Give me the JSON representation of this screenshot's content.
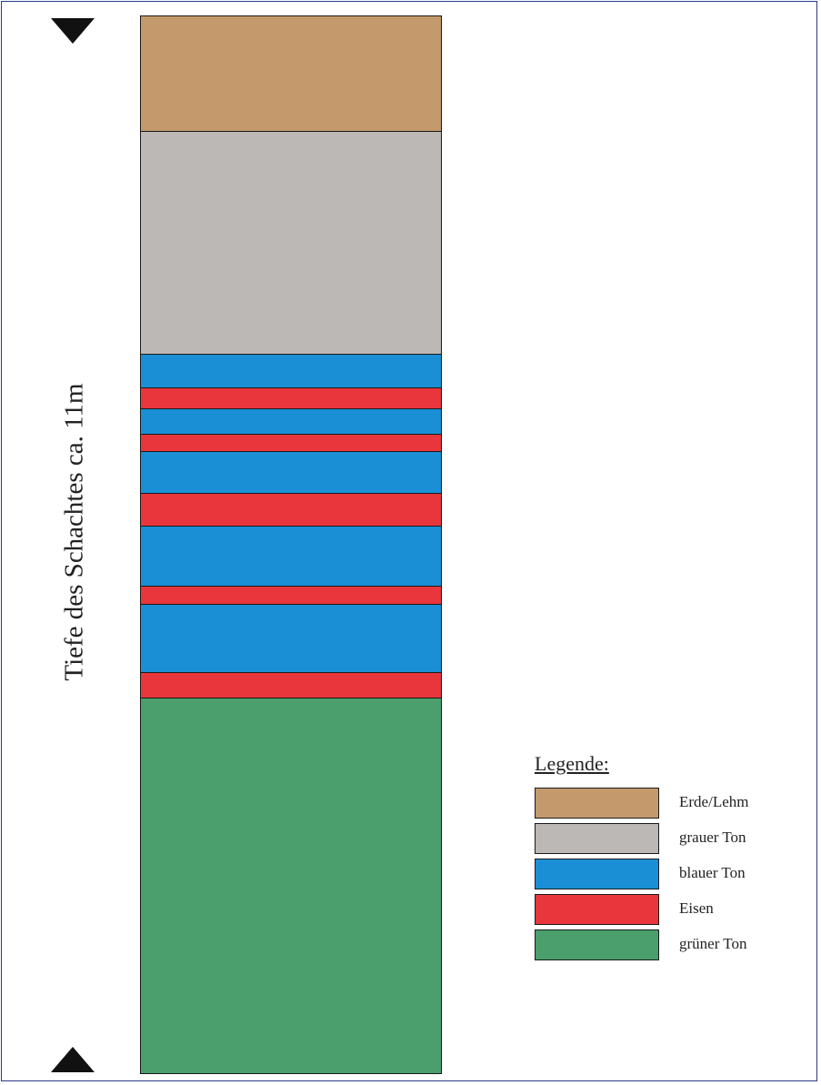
{
  "depth_label": "Tiefe des Schachtes ca. 11m",
  "materials": {
    "erde": {
      "name": "Erde/Lehm",
      "color": "#c49a6c"
    },
    "grau": {
      "name": "grauer Ton",
      "color": "#bbb8b5"
    },
    "blau": {
      "name": "blauer Ton",
      "color": "#1b8fd6"
    },
    "eisen": {
      "name": "Eisen",
      "color": "#e8363c"
    },
    "gruen": {
      "name": "grüner Ton",
      "color": "#4a9f6c"
    }
  },
  "legend": {
    "title": "Legende:",
    "items": [
      {
        "label": "Erde/Lehm",
        "color": "#c49a6c"
      },
      {
        "label": "grauer Ton",
        "color": "#bbb8b5"
      },
      {
        "label": "blauer Ton",
        "color": "#1b8fd6"
      },
      {
        "label": "Eisen",
        "color": "#e8363c"
      },
      {
        "label": "grüner Ton",
        "color": "#4a9f6c"
      }
    ]
  },
  "profile": {
    "top_depth_m": 0,
    "bottom_depth_m": 11,
    "layers": [
      {
        "material": "erde",
        "thickness_m": 1.2
      },
      {
        "material": "grau",
        "thickness_m": 2.32
      },
      {
        "material": "blau",
        "thickness_m": 0.35
      },
      {
        "material": "eisen",
        "thickness_m": 0.22
      },
      {
        "material": "blau",
        "thickness_m": 0.26
      },
      {
        "material": "eisen",
        "thickness_m": 0.18
      },
      {
        "material": "blau",
        "thickness_m": 0.44
      },
      {
        "material": "eisen",
        "thickness_m": 0.34
      },
      {
        "material": "blau",
        "thickness_m": 0.62
      },
      {
        "material": "eisen",
        "thickness_m": 0.19
      },
      {
        "material": "blau",
        "thickness_m": 0.71
      },
      {
        "material": "eisen",
        "thickness_m": 0.26
      },
      {
        "material": "gruen",
        "thickness_m": 3.91
      }
    ]
  }
}
